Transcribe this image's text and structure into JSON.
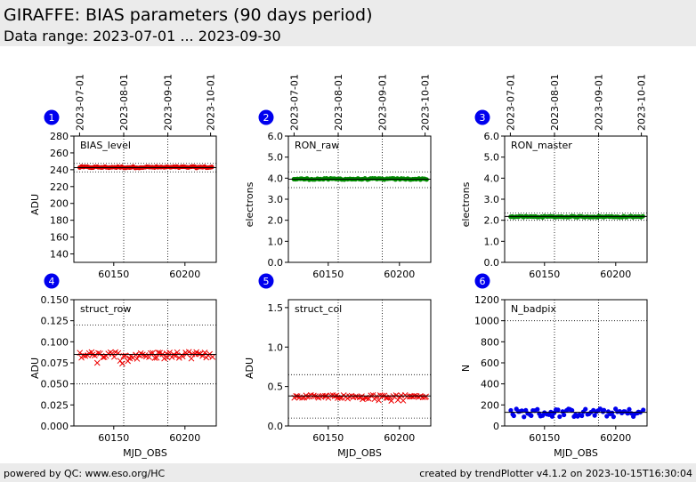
{
  "header": {
    "title": "GIRAFFE: BIAS parameters (90 days period)",
    "subtitle": "Data range: 2023-07-01 ... 2023-09-30"
  },
  "footer": {
    "left": "powered by QC: www.eso.org/HC",
    "right": "created by trendPlotter v4.1.2 on 2023-10-15T16:30:04"
  },
  "top_date_ticks": [
    {
      "mjd": 60126,
      "label": "2023-07-01"
    },
    {
      "mjd": 60157,
      "label": "2023-08-01"
    },
    {
      "mjd": 60188,
      "label": "2023-09-01"
    },
    {
      "mjd": 60218,
      "label": "2023-10-01"
    }
  ],
  "chart_data": [
    {
      "type": "scatter",
      "number": "1",
      "label": "BIAS_level",
      "ylabel": "ADU",
      "xlabel": "",
      "xlim": [
        60122,
        60222
      ],
      "ylim": [
        130,
        280
      ],
      "xticks": [
        60150,
        60200
      ],
      "yticks": [
        140,
        160,
        180,
        200,
        220,
        240,
        260,
        280
      ],
      "ytick_labels": [
        "140",
        "160",
        "180",
        "200",
        "220",
        "240",
        "260",
        "280"
      ],
      "hlines_dotted": [
        237.5,
        247.5
      ],
      "hline_solid": 242.5,
      "grid_v": [
        60157,
        60188
      ],
      "marker": "circle",
      "color": "#dd0000",
      "x_start": 60126,
      "x_end": 60219,
      "y_mean": 243.0,
      "y_jitter": 0.8
    },
    {
      "type": "scatter",
      "number": "2",
      "label": "RON_raw",
      "ylabel": "electrons",
      "xlabel": "",
      "xlim": [
        60122,
        60222
      ],
      "ylim": [
        0,
        6
      ],
      "xticks": [
        60150,
        60200
      ],
      "yticks": [
        0,
        1,
        2,
        3,
        4,
        5,
        6
      ],
      "ytick_labels": [
        "0.0",
        "1.0",
        "2.0",
        "3.0",
        "4.0",
        "5.0",
        "6.0"
      ],
      "hlines_dotted": [
        3.55,
        4.3
      ],
      "hline_solid": 3.95,
      "grid_v": [
        60157,
        60188
      ],
      "marker": "circle",
      "color": "#008800",
      "x_start": 60126,
      "x_end": 60219,
      "y_mean": 3.96,
      "y_jitter": 0.03
    },
    {
      "type": "scatter",
      "number": "3",
      "label": "RON_master",
      "ylabel": "electrons",
      "xlabel": "",
      "xlim": [
        60122,
        60222
      ],
      "ylim": [
        0,
        6
      ],
      "xticks": [
        60150,
        60200
      ],
      "yticks": [
        0,
        1,
        2,
        3,
        4,
        5,
        6
      ],
      "ytick_labels": [
        "0.0",
        "1.0",
        "2.0",
        "3.0",
        "4.0",
        "5.0",
        "6.0"
      ],
      "hlines_dotted": [
        2.0,
        2.35
      ],
      "hline_solid": 2.18,
      "grid_v": [
        60157,
        60188
      ],
      "marker": "circle",
      "color": "#008800",
      "x_start": 60126,
      "x_end": 60219,
      "y_mean": 2.17,
      "y_jitter": 0.025
    },
    {
      "type": "scatter",
      "number": "4",
      "label": "struct_row",
      "ylabel": "ADU",
      "xlabel": "MJD_OBS",
      "xlim": [
        60122,
        60222
      ],
      "ylim": [
        0,
        0.15
      ],
      "xticks": [
        60150,
        60200
      ],
      "yticks": [
        0,
        0.025,
        0.05,
        0.075,
        0.1,
        0.125,
        0.15
      ],
      "ytick_labels": [
        "0.000",
        "0.025",
        "0.050",
        "0.075",
        "0.100",
        "0.125",
        "0.150"
      ],
      "hlines_dotted": [
        0.05,
        0.12
      ],
      "hline_solid": 0.085,
      "grid_v": [
        60157,
        60188
      ],
      "marker": "x",
      "color": "#ee0000",
      "x_start": 60126,
      "x_end": 60219,
      "y_mean": 0.084,
      "y_jitter": 0.004
    },
    {
      "type": "scatter",
      "number": "5",
      "label": "struct_col",
      "ylabel": "ADU",
      "xlabel": "MJD_OBS",
      "xlim": [
        60122,
        60222
      ],
      "ylim": [
        0,
        1.6
      ],
      "xticks": [
        60150,
        60200
      ],
      "yticks": [
        0,
        0.5,
        1.0,
        1.5
      ],
      "ytick_labels": [
        "0.0",
        "0.5",
        "1.0",
        "1.5"
      ],
      "hlines_dotted": [
        0.1,
        0.65
      ],
      "hline_solid": 0.38,
      "grid_v": [
        60157,
        60188
      ],
      "marker": "x",
      "color": "#ee0000",
      "x_start": 60126,
      "x_end": 60219,
      "y_mean": 0.375,
      "y_jitter": 0.02
    },
    {
      "type": "scatter",
      "number": "6",
      "label": "N_badpix",
      "ylabel": "N",
      "xlabel": "MJD_OBS",
      "xlim": [
        60122,
        60222
      ],
      "ylim": [
        0,
        1200
      ],
      "xticks": [
        60150,
        60200
      ],
      "yticks": [
        0,
        200,
        400,
        600,
        800,
        1000,
        1200
      ],
      "ytick_labels": [
        "0",
        "200",
        "400",
        "600",
        "800",
        "1000",
        "1200"
      ],
      "hlines_dotted": [
        1000
      ],
      "hline_solid": 130,
      "grid_v": [
        60157,
        60188
      ],
      "marker": "circle",
      "color": "#0000ee",
      "x_start": 60126,
      "x_end": 60219,
      "y_mean": 125,
      "y_jitter": 40
    }
  ]
}
